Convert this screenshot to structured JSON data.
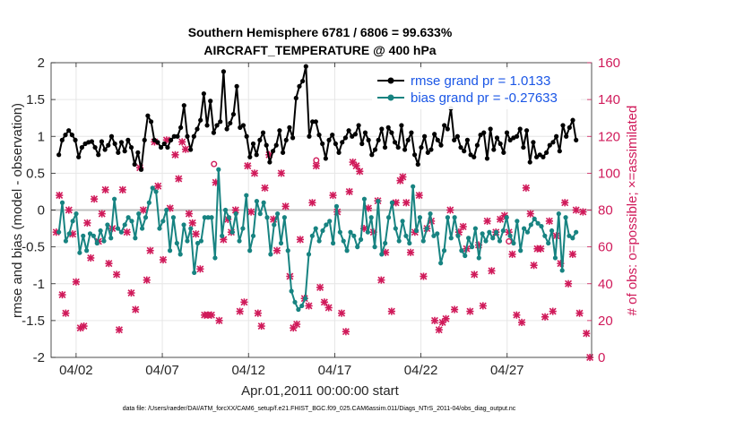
{
  "chart_data": {
    "type": "line",
    "title_line1": "Southern Hemisphere 6781 / 6806 = 99.633%",
    "title_line2": "AIRCRAFT_TEMPERATURE @ 400 hPa",
    "xlabel": "Apr.01,2011 00:00:00 start",
    "ylabel_left": "rmse and bias (model - observation)",
    "ylabel_right": "# of obs: o=possible; ×=assimilated",
    "footer": "data file: /Users/raeder/DAI/ATM_forcXX/CAM6_setup/f.e21.FHIST_BGC.f09_025.CAM6assim.011/Diags_NTrS_2011-04/obs_diag_output.nc",
    "xlim": [
      0.55,
      31.9
    ],
    "ylim_left": [
      -2,
      2
    ],
    "ylim_right": [
      0,
      160
    ],
    "x_ticks": [
      {
        "value": 2,
        "label": "04/02"
      },
      {
        "value": 7,
        "label": "04/07"
      },
      {
        "value": 12,
        "label": "04/12"
      },
      {
        "value": 17,
        "label": "04/17"
      },
      {
        "value": 22,
        "label": "04/22"
      },
      {
        "value": 27,
        "label": "04/27"
      }
    ],
    "y_ticks_left": [
      {
        "value": 2,
        "label": "2"
      },
      {
        "value": 1.5,
        "label": "1.5"
      },
      {
        "value": 1,
        "label": "1"
      },
      {
        "value": 0.5,
        "label": "0.5"
      },
      {
        "value": 0,
        "label": "0"
      },
      {
        "value": -0.5,
        "label": "-0.5"
      },
      {
        "value": -1,
        "label": "-1"
      },
      {
        "value": -1.5,
        "label": "-1.5"
      },
      {
        "value": -2,
        "label": "-2"
      }
    ],
    "y_ticks_right": [
      {
        "value": 160,
        "label": "160"
      },
      {
        "value": 140,
        "label": "140"
      },
      {
        "value": 120,
        "label": "120"
      },
      {
        "value": 100,
        "label": "100"
      },
      {
        "value": 80,
        "label": "80"
      },
      {
        "value": 60,
        "label": "60"
      },
      {
        "value": 40,
        "label": "40"
      },
      {
        "value": 20,
        "label": "20"
      },
      {
        "value": 0,
        "label": "0"
      }
    ],
    "grid": true,
    "legend_position": "top-right",
    "series": [
      {
        "name": "rmse grand pr = 1.0133",
        "color": "#000000",
        "axis": "left",
        "values": [
          0.75,
          0.95,
          1.02,
          1.08,
          1.02,
          0.95,
          0.72,
          0.85,
          0.9,
          0.92,
          0.93,
          0.85,
          0.75,
          0.93,
          0.82,
          0.88,
          1.0,
          0.9,
          0.78,
          0.92,
          0.8,
          0.95,
          0.85,
          0.62,
          0.78,
          0.55,
          0.95,
          1.28,
          1.2,
          0.95,
          0.92,
          0.85,
          0.9,
          0.85,
          0.95,
          1.0,
          1.0,
          1.12,
          1.42,
          1.0,
          0.82,
          1.0,
          1.1,
          1.22,
          1.58,
          1.15,
          1.48,
          1.05,
          1.15,
          1.2,
          1.88,
          1.1,
          1.18,
          1.3,
          1.68,
          1.12,
          1.15,
          1.0,
          0.72,
          0.9,
          0.75,
          0.95,
          1.05,
          0.88,
          0.65,
          0.8,
          0.88,
          1.08,
          0.78,
          0.95,
          1.12,
          0.98,
          1.52,
          1.68,
          1.75,
          1.95,
          1.0,
          1.2,
          1.2,
          1.02,
          0.9,
          0.7,
          0.95,
          1.02,
          0.9,
          0.78,
          0.92,
          0.98,
          1.08,
          1.0,
          1.03,
          1.15,
          0.9,
          1.05,
          0.95,
          0.75,
          0.82,
          0.95,
          1.1,
          0.85,
          1.12,
          1.05,
          0.92,
          0.85,
          1.15,
          0.82,
          0.95,
          1.05,
          0.75,
          0.62,
          0.85,
          1.0,
          0.78,
          0.82,
          1.03,
          0.95,
          0.88,
          1.15,
          1.1,
          1.38,
          0.95,
          1.0,
          0.85,
          0.8,
          0.95,
          0.75,
          0.72,
          0.88,
          1.02,
          1.05,
          0.7,
          1.1,
          0.82,
          0.98,
          0.9,
          0.78,
          1.05,
          0.95,
          0.98,
          1.0,
          1.1,
          0.85,
          1.08,
          0.65,
          0.92,
          0.72,
          0.75,
          0.72,
          0.78,
          0.88,
          0.92,
          1.0,
          0.8,
          1.15,
          1.0,
          1.12,
          1.22,
          0.95
        ]
      },
      {
        "name": "bias grand pr = -0.27633",
        "color": "#178381",
        "axis": "left",
        "values": [
          -0.3,
          0.1,
          -0.42,
          -0.32,
          -0.15,
          -0.05,
          -0.58,
          -0.35,
          -0.55,
          -0.32,
          -0.35,
          -0.45,
          -0.28,
          -0.42,
          -0.2,
          -0.38,
          0.15,
          -0.25,
          -0.3,
          -0.2,
          -0.1,
          -0.15,
          -0.38,
          -0.05,
          -0.25,
          -0.1,
          0.1,
          0.3,
          0.25,
          -0.25,
          -0.15,
          0.0,
          -0.55,
          -0.1,
          -0.45,
          -0.6,
          -0.2,
          -0.42,
          -0.25,
          -0.85,
          -0.45,
          -0.42,
          -0.1,
          -0.1,
          -0.1,
          -0.65,
          0.55,
          -0.35,
          0.0,
          -0.1,
          -0.3,
          -0.05,
          -0.42,
          -0.25,
          0.2,
          -0.55,
          -0.35,
          0.12,
          -0.05,
          0.1,
          -0.1,
          -0.6,
          -0.2,
          -0.05,
          -0.45,
          -0.1,
          -0.55,
          -1.1,
          -1.25,
          -1.35,
          -1.3,
          -1.2,
          -0.6,
          -0.35,
          -0.25,
          -0.42,
          -0.28,
          -0.2,
          -0.15,
          -0.45,
          0.05,
          -0.3,
          -0.42,
          -0.55,
          -0.3,
          -0.35,
          -0.5,
          -0.4,
          0.15,
          -0.3,
          -0.1,
          -0.5,
          0.12,
          -0.6,
          -0.45,
          -0.1,
          0.1,
          -0.25,
          -0.42,
          -0.15,
          -0.35,
          -0.45,
          0.32,
          -0.28,
          -0.1,
          -0.42,
          -0.25,
          -0.05,
          -0.35,
          -0.32,
          -0.72,
          -0.55,
          -0.1,
          -0.38,
          -0.1,
          -0.35,
          -0.55,
          -0.62,
          -0.38,
          -0.5,
          -0.25,
          -0.65,
          -0.32,
          -0.42,
          -0.3,
          -0.38,
          -0.3,
          -0.42,
          -0.28,
          -0.1,
          -0.35,
          -0.45,
          -0.15,
          -0.55,
          -0.25,
          -0.3,
          -0.2,
          -0.12,
          -0.18,
          -0.22,
          -0.35,
          -0.45,
          -0.28,
          -0.65,
          -0.05,
          -0.82,
          -0.1,
          -0.35,
          -0.38,
          -0.3
        ]
      }
    ],
    "obs_possible_right": [
      {
        "x": 10.0,
        "y": 105
      },
      {
        "x": 15.93,
        "y": 107
      },
      {
        "x": 27.1,
        "y": 63
      }
    ],
    "obs_assimilated_right": [
      {
        "x": 0.85,
        "y": 68
      },
      {
        "x": 1.03,
        "y": 88
      },
      {
        "x": 1.2,
        "y": 34
      },
      {
        "x": 1.4,
        "y": 24
      },
      {
        "x": 1.58,
        "y": 80
      },
      {
        "x": 1.8,
        "y": 67
      },
      {
        "x": 2.0,
        "y": 41
      },
      {
        "x": 2.25,
        "y": 16
      },
      {
        "x": 2.45,
        "y": 17
      },
      {
        "x": 2.65,
        "y": 73
      },
      {
        "x": 2.85,
        "y": 54
      },
      {
        "x": 3.05,
        "y": 86
      },
      {
        "x": 3.3,
        "y": 63
      },
      {
        "x": 3.5,
        "y": 78
      },
      {
        "x": 3.7,
        "y": 91
      },
      {
        "x": 3.9,
        "y": 51
      },
      {
        "x": 4.1,
        "y": 70
      },
      {
        "x": 4.35,
        "y": 45
      },
      {
        "x": 4.5,
        "y": 15
      },
      {
        "x": 4.7,
        "y": 91
      },
      {
        "x": 4.95,
        "y": 68
      },
      {
        "x": 5.2,
        "y": 35
      },
      {
        "x": 5.45,
        "y": 26
      },
      {
        "x": 5.7,
        "y": 103
      },
      {
        "x": 5.9,
        "y": 80
      },
      {
        "x": 6.1,
        "y": 42
      },
      {
        "x": 6.3,
        "y": 58
      },
      {
        "x": 6.55,
        "y": 117
      },
      {
        "x": 6.75,
        "y": 93
      },
      {
        "x": 7.05,
        "y": 53
      },
      {
        "x": 7.25,
        "y": 118
      },
      {
        "x": 7.45,
        "y": 81
      },
      {
        "x": 7.75,
        "y": 110
      },
      {
        "x": 7.95,
        "y": 97
      },
      {
        "x": 8.15,
        "y": 117
      },
      {
        "x": 8.35,
        "y": 113
      },
      {
        "x": 8.55,
        "y": 78
      },
      {
        "x": 8.75,
        "y": 73
      },
      {
        "x": 8.95,
        "y": 67
      },
      {
        "x": 9.2,
        "y": 48
      },
      {
        "x": 9.45,
        "y": 23
      },
      {
        "x": 9.65,
        "y": 23
      },
      {
        "x": 9.85,
        "y": 23
      },
      {
        "x": 10.1,
        "y": 95
      },
      {
        "x": 10.3,
        "y": 20
      },
      {
        "x": 10.55,
        "y": 64
      },
      {
        "x": 10.8,
        "y": 75
      },
      {
        "x": 11.0,
        "y": 68
      },
      {
        "x": 11.25,
        "y": 80
      },
      {
        "x": 11.5,
        "y": 25
      },
      {
        "x": 11.75,
        "y": 30
      },
      {
        "x": 11.95,
        "y": 104
      },
      {
        "x": 12.15,
        "y": 79
      },
      {
        "x": 12.35,
        "y": 100
      },
      {
        "x": 12.55,
        "y": 24
      },
      {
        "x": 12.75,
        "y": 17
      },
      {
        "x": 12.95,
        "y": 92
      },
      {
        "x": 13.2,
        "y": 110
      },
      {
        "x": 13.45,
        "y": 75
      },
      {
        "x": 13.65,
        "y": 58
      },
      {
        "x": 13.9,
        "y": 100
      },
      {
        "x": 14.15,
        "y": 82
      },
      {
        "x": 14.4,
        "y": 44
      },
      {
        "x": 14.6,
        "y": 16
      },
      {
        "x": 14.8,
        "y": 18
      },
      {
        "x": 15.0,
        "y": 64
      },
      {
        "x": 15.25,
        "y": 32
      },
      {
        "x": 15.5,
        "y": 28
      },
      {
        "x": 15.7,
        "y": 84
      },
      {
        "x": 15.93,
        "y": 104
      },
      {
        "x": 16.15,
        "y": 38
      },
      {
        "x": 16.4,
        "y": 30
      },
      {
        "x": 16.65,
        "y": 27
      },
      {
        "x": 16.9,
        "y": 88
      },
      {
        "x": 17.15,
        "y": 79
      },
      {
        "x": 17.4,
        "y": 24
      },
      {
        "x": 17.65,
        "y": 14
      },
      {
        "x": 17.85,
        "y": 90
      },
      {
        "x": 18.05,
        "y": 106
      },
      {
        "x": 18.25,
        "y": 104
      },
      {
        "x": 18.45,
        "y": 101
      },
      {
        "x": 18.7,
        "y": 70
      },
      {
        "x": 18.95,
        "y": 81
      },
      {
        "x": 19.25,
        "y": 68
      },
      {
        "x": 19.5,
        "y": 85
      },
      {
        "x": 19.7,
        "y": 42
      },
      {
        "x": 19.95,
        "y": 57
      },
      {
        "x": 20.3,
        "y": 25
      },
      {
        "x": 20.55,
        "y": 84
      },
      {
        "x": 20.8,
        "y": 96
      },
      {
        "x": 20.95,
        "y": 98
      },
      {
        "x": 21.15,
        "y": 84
      },
      {
        "x": 21.4,
        "y": 57
      },
      {
        "x": 21.65,
        "y": 68
      },
      {
        "x": 21.9,
        "y": 88
      },
      {
        "x": 22.15,
        "y": 44
      },
      {
        "x": 22.35,
        "y": 70
      },
      {
        "x": 22.6,
        "y": 74
      },
      {
        "x": 22.8,
        "y": 20
      },
      {
        "x": 23.05,
        "y": 15
      },
      {
        "x": 23.25,
        "y": 19
      },
      {
        "x": 23.45,
        "y": 21
      },
      {
        "x": 23.7,
        "y": 80
      },
      {
        "x": 23.95,
        "y": 26
      },
      {
        "x": 24.2,
        "y": 68
      },
      {
        "x": 24.45,
        "y": 71
      },
      {
        "x": 24.65,
        "y": 59
      },
      {
        "x": 24.85,
        "y": 25
      },
      {
        "x": 25.1,
        "y": 45
      },
      {
        "x": 25.35,
        "y": 61
      },
      {
        "x": 25.6,
        "y": 28
      },
      {
        "x": 25.85,
        "y": 74
      },
      {
        "x": 26.1,
        "y": 47
      },
      {
        "x": 26.35,
        "y": 68
      },
      {
        "x": 26.6,
        "y": 75
      },
      {
        "x": 26.85,
        "y": 77
      },
      {
        "x": 27.1,
        "y": 68
      },
      {
        "x": 27.3,
        "y": 56
      },
      {
        "x": 27.55,
        "y": 23
      },
      {
        "x": 27.85,
        "y": 19
      },
      {
        "x": 28.1,
        "y": 92
      },
      {
        "x": 28.35,
        "y": 78
      },
      {
        "x": 28.55,
        "y": 50
      },
      {
        "x": 28.75,
        "y": 59
      },
      {
        "x": 28.95,
        "y": 59
      },
      {
        "x": 29.2,
        "y": 22
      },
      {
        "x": 29.45,
        "y": 74
      },
      {
        "x": 29.65,
        "y": 25
      },
      {
        "x": 29.85,
        "y": 66
      },
      {
        "x": 30.1,
        "y": 51
      },
      {
        "x": 30.35,
        "y": 84
      },
      {
        "x": 30.55,
        "y": 40
      },
      {
        "x": 30.8,
        "y": 56
      },
      {
        "x": 31.0,
        "y": 80
      },
      {
        "x": 31.2,
        "y": 24
      },
      {
        "x": 31.4,
        "y": 79
      },
      {
        "x": 31.6,
        "y": 13
      },
      {
        "x": 31.8,
        "y": 0
      }
    ],
    "colors": {
      "rmse": "#000000",
      "bias": "#178381",
      "obs": "#d01a5a",
      "legend_text": "#1a56e6",
      "grid": "#e6e6e6",
      "zero_line": "#bfbfbf"
    }
  }
}
